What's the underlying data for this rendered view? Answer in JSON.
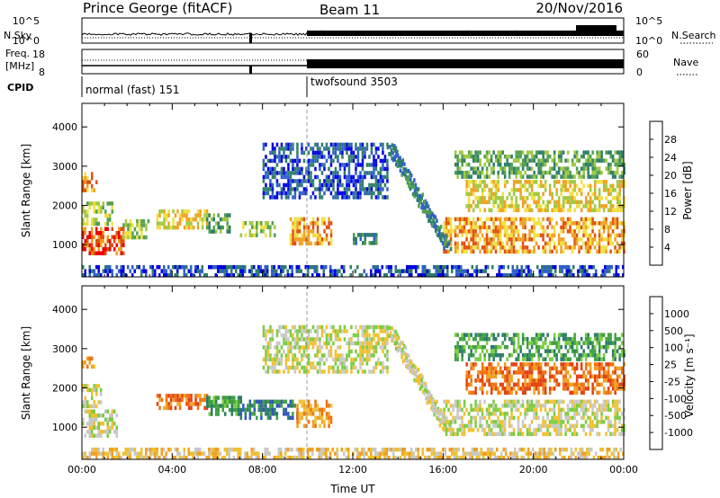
{
  "header": {
    "station": "Prince George (fitACF)",
    "beam": "Beam 11",
    "date": "20/Nov/2016"
  },
  "params": {
    "nsky_label": "N.Sky",
    "nsearch_label": "N.Search",
    "exp_ticks": {
      "top": "10^5",
      "bottom": "10^0"
    },
    "freq_label_1": "Freq.",
    "freq_label_2": "[MHz]",
    "freq_ticks": [
      "18",
      "8"
    ],
    "nave_label": "Nave",
    "nave_ticks": [
      "60",
      "0"
    ],
    "cpid_label": "CPID",
    "cpid_segments": [
      {
        "start": 0,
        "text": "normal (fast) 151"
      },
      {
        "start": 10,
        "text": "twofsound 3503"
      }
    ]
  },
  "chart_data": [
    {
      "type": "heatmap",
      "title": "",
      "ylabel": "Slant Range [km]",
      "x_unit_hours": [
        0,
        24
      ],
      "ylim": [
        180,
        4600
      ],
      "yticks": [
        1000,
        2000,
        3000,
        4000
      ],
      "colorbar": {
        "label": "Power [dB]",
        "ticks": [
          "28",
          "24",
          "20",
          "16",
          "12",
          "8",
          "4"
        ],
        "colors": [
          "#0000e0",
          "#2f5fc8",
          "#2e7e68",
          "#52a050",
          "#a0c840",
          "#f0e040",
          "#f0a020",
          "#e05010",
          "#ee0000"
        ]
      },
      "regions": [
        {
          "t": [
            0.0,
            1.8
          ],
          "r": [
            800,
            1450
          ],
          "level": 7
        },
        {
          "t": [
            0.0,
            0.6
          ],
          "r": [
            2400,
            2850
          ],
          "level": 6
        },
        {
          "t": [
            0.0,
            1.3
          ],
          "r": [
            1500,
            2100
          ],
          "level": 4
        },
        {
          "t": [
            1.8,
            2.9
          ],
          "r": [
            1150,
            1650
          ],
          "level": 4
        },
        {
          "t": [
            3.3,
            5.5
          ],
          "r": [
            1450,
            1900
          ],
          "level": 5
        },
        {
          "t": [
            5.5,
            6.5
          ],
          "r": [
            1350,
            1800
          ],
          "level": 3
        },
        {
          "t": [
            7.0,
            8.5
          ],
          "r": [
            1200,
            1600
          ],
          "level": 4
        },
        {
          "t": [
            9.2,
            11.0
          ],
          "r": [
            1050,
            1700
          ],
          "level": 6
        },
        {
          "t": [
            8.0,
            13.5
          ],
          "r": [
            2200,
            3600
          ],
          "level": 1
        },
        {
          "t": [
            12.0,
            13.0
          ],
          "r": [
            1050,
            1300
          ],
          "level": 2
        },
        {
          "t": [
            16.0,
            24.0
          ],
          "r": [
            800,
            1700
          ],
          "level": 6
        },
        {
          "t": [
            17.0,
            24.0
          ],
          "r": [
            1900,
            2650
          ],
          "level": 5
        },
        {
          "t": [
            16.5,
            24.0
          ],
          "r": [
            2700,
            3400
          ],
          "level": 3
        },
        {
          "t": [
            0.0,
            24.0
          ],
          "r": [
            200,
            480
          ],
          "level": 1
        }
      ],
      "streak": {
        "t": [
          13.5,
          16.0
        ],
        "r": [
          3500,
          1000
        ],
        "level": 2
      }
    },
    {
      "type": "heatmap",
      "title": "",
      "ylabel": "Slant Range [km]",
      "xlabel": "Time UT",
      "x_ticks": [
        "00:00",
        "04:00",
        "08:00",
        "12:00",
        "16:00",
        "20:00",
        "00:00"
      ],
      "ylim": [
        180,
        4600
      ],
      "yticks": [
        1000,
        2000,
        3000,
        4000
      ],
      "colorbar": {
        "label": "Velocity [m s⁻¹]",
        "ticks": [
          "1000",
          "500",
          "100",
          "25",
          "-25",
          "-100",
          "-500",
          "-1000"
        ],
        "colors": [
          "#ee0000",
          "#e04010",
          "#f07010",
          "#f0a020",
          "#f0c030",
          "#c8c8c8",
          "#7acc40",
          "#3fa040",
          "#2a7a6a",
          "#2f55b8",
          "#2030c8"
        ]
      },
      "regions": [
        {
          "t": [
            0.0,
            1.5
          ],
          "r": [
            800,
            1450
          ],
          "level": 5
        },
        {
          "t": [
            0.0,
            0.8
          ],
          "r": [
            1500,
            2100
          ],
          "level": 5
        },
        {
          "t": [
            0.0,
            0.5
          ],
          "r": [
            2500,
            2800
          ],
          "level": 3
        },
        {
          "t": [
            3.3,
            5.5
          ],
          "r": [
            1450,
            1850
          ],
          "level": 2
        },
        {
          "t": [
            5.5,
            7.0
          ],
          "r": [
            1300,
            1800
          ],
          "level": 7
        },
        {
          "t": [
            7.0,
            9.5
          ],
          "r": [
            1250,
            1700
          ],
          "level": 8
        },
        {
          "t": [
            9.5,
            11.0
          ],
          "r": [
            1000,
            1700
          ],
          "level": 3
        },
        {
          "t": [
            8.0,
            13.5
          ],
          "r": [
            2400,
            3600
          ],
          "level": 5
        },
        {
          "t": [
            16.0,
            24.0
          ],
          "r": [
            800,
            1700
          ],
          "level": 5
        },
        {
          "t": [
            17.0,
            24.0
          ],
          "r": [
            1900,
            2650
          ],
          "level": 2
        },
        {
          "t": [
            16.5,
            24.0
          ],
          "r": [
            2700,
            3400
          ],
          "level": 7
        },
        {
          "t": [
            0.0,
            24.0
          ],
          "r": [
            200,
            480
          ],
          "level": 4
        }
      ],
      "streak": {
        "t": [
          13.5,
          16.0
        ],
        "r": [
          3500,
          1000
        ],
        "level": 5
      }
    }
  ]
}
